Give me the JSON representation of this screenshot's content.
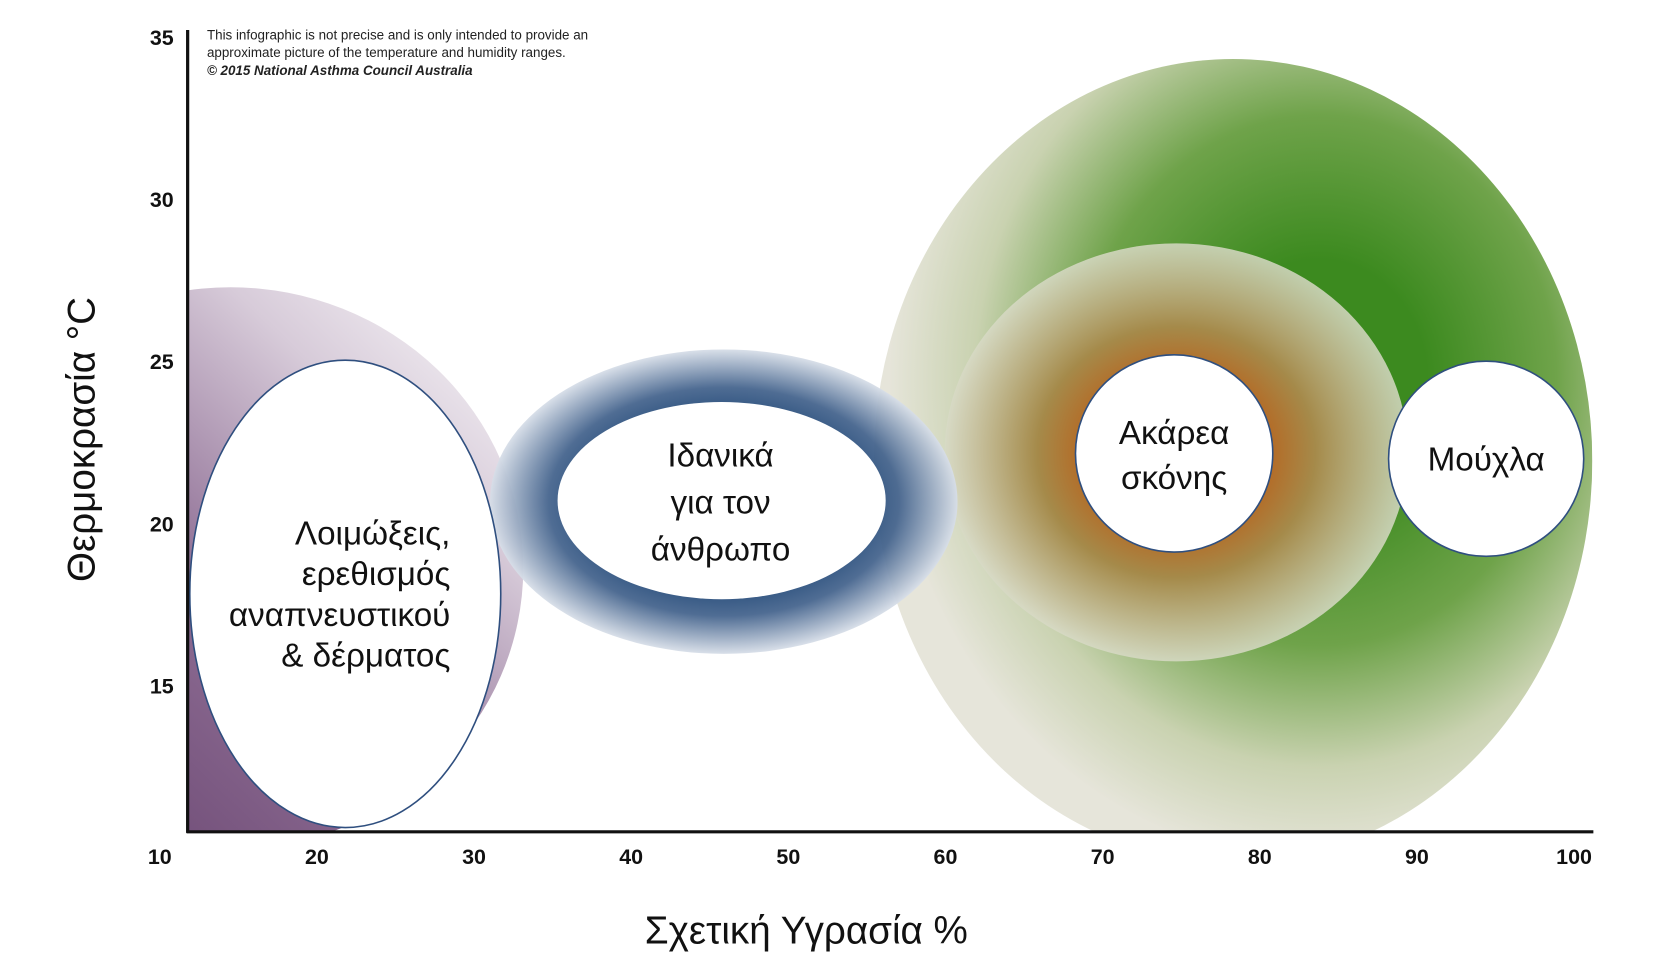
{
  "chart_data": {
    "type": "region",
    "note": [
      "This infographic is not precise and is only intended to provide an",
      "approximate picture of the temperature and humidity ranges.",
      "© 2015 National Asthma Council Australia"
    ],
    "x_label": "Σχετική Υγρασία %",
    "y_label": "Θερμοκρασία °C",
    "xlim": [
      10,
      100
    ],
    "ylim": [
      10.5,
      35
    ],
    "xticks": [
      10,
      20,
      30,
      40,
      50,
      60,
      70,
      80,
      90,
      100
    ],
    "yticks": [
      15,
      20,
      25,
      30,
      35
    ],
    "regions": [
      {
        "label": [
          "Λοιμώξεις,",
          "ερεθισμός",
          "αναπνευστικού",
          "& δέρματος"
        ]
      },
      {
        "label": [
          "Ιδανικά",
          "για τον",
          "άνθρωπο"
        ]
      },
      {
        "label": [
          "Ακάρεα",
          "σκόνης"
        ]
      },
      {
        "label": [
          "Μούχλα"
        ]
      }
    ]
  }
}
